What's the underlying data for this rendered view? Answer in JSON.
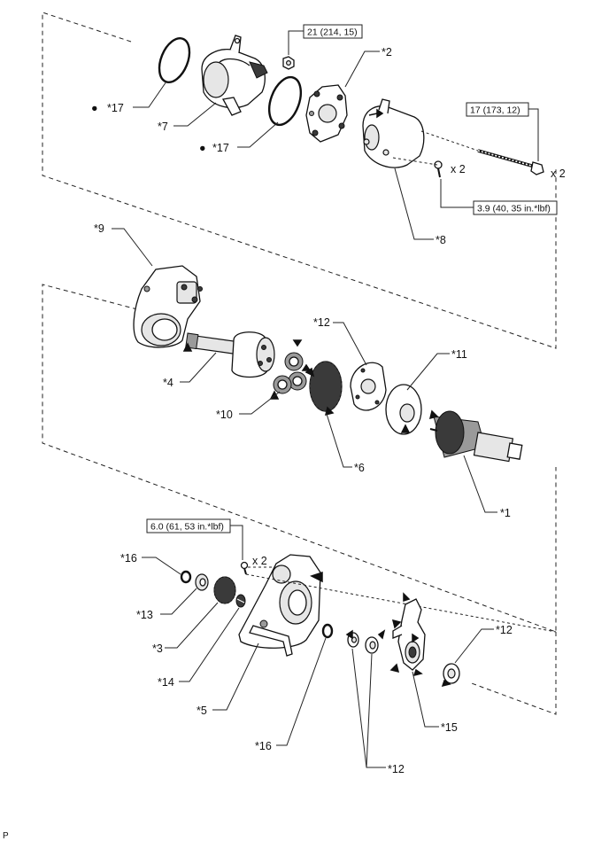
{
  "labels": {
    "p1": "*1",
    "p2": "*2",
    "p3": "*3",
    "p4": "*4",
    "p5": "*5",
    "p6": "*6",
    "p7": "*7",
    "p8": "*8",
    "p9": "*9",
    "p10": "*10",
    "p11": "*11",
    "p12a": "*12",
    "p12b": "*12",
    "p12c": "*12",
    "p13": "*13",
    "p14": "*14",
    "p15": "*15",
    "p16a": "*16",
    "p16b": "*16",
    "p17a": "*17",
    "p17b": "*17"
  },
  "torque": {
    "nut": "21 (214, 15)",
    "bolt": "17 (173, 12)",
    "screw": "3.9 (40, 35 in.*lbf)",
    "bolt_lower": "6.0 (61, 53 in.*lbf)"
  },
  "quantities": {
    "bolt": "x 2",
    "screw": "x 2",
    "bolt_lower": "x 2"
  },
  "markers": {
    "non_reusable_1": "●",
    "non_reusable_2": "●"
  },
  "footer_code": "P"
}
